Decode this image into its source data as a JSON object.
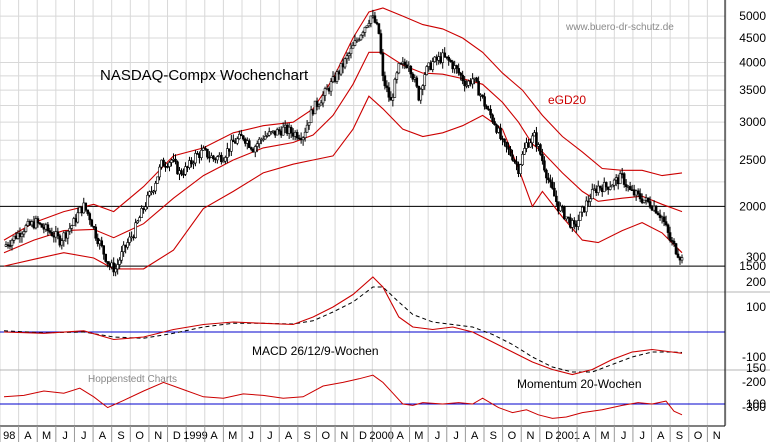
{
  "chart_data": [
    {
      "type": "candlestick",
      "title": "NASDAQ-Compx Wochenchart",
      "watermark": "www.buero-dr-schutz.de",
      "series_label": "eGD20",
      "y_scale": "log",
      "ylim": [
        1350,
        5300
      ],
      "y_ticks": [
        5000,
        4500,
        4000,
        3500,
        3000,
        2500,
        2000,
        1500
      ],
      "reference_lines": [
        2000,
        1500
      ],
      "close_path": [
        [
          0,
          1650
        ],
        [
          5,
          1720
        ],
        [
          10,
          1800
        ],
        [
          16,
          1850
        ],
        [
          20,
          1800
        ],
        [
          24,
          1760
        ],
        [
          28,
          1700
        ],
        [
          32,
          1780
        ],
        [
          35,
          1850
        ],
        [
          38,
          1960
        ],
        [
          40,
          2000
        ],
        [
          43,
          1900
        ],
        [
          46,
          1750
        ],
        [
          50,
          1600
        ],
        [
          53,
          1500
        ],
        [
          56,
          1480
        ],
        [
          60,
          1620
        ],
        [
          65,
          1760
        ],
        [
          70,
          1980
        ],
        [
          75,
          2200
        ],
        [
          79,
          2450
        ],
        [
          84,
          2500
        ],
        [
          88,
          2350
        ],
        [
          92,
          2400
        ],
        [
          96,
          2550
        ],
        [
          100,
          2600
        ],
        [
          105,
          2520
        ],
        [
          110,
          2550
        ],
        [
          115,
          2720
        ],
        [
          120,
          2800
        ],
        [
          125,
          2650
        ],
        [
          130,
          2800
        ],
        [
          136,
          2850
        ],
        [
          140,
          2900
        ],
        [
          145,
          2850
        ],
        [
          150,
          2820
        ],
        [
          155,
          3200
        ],
        [
          160,
          3400
        ],
        [
          165,
          3650
        ],
        [
          170,
          3950
        ],
        [
          175,
          4300
        ],
        [
          180,
          4700
        ],
        [
          184,
          5000
        ],
        [
          186,
          4850
        ],
        [
          188,
          4600
        ],
        [
          190,
          3700
        ],
        [
          192,
          3500
        ],
        [
          194,
          3300
        ],
        [
          198,
          3900
        ],
        [
          203,
          4000
        ],
        [
          208,
          3400
        ],
        [
          211,
          3800
        ],
        [
          215,
          4000
        ],
        [
          220,
          4100
        ],
        [
          224,
          4000
        ],
        [
          228,
          3800
        ],
        [
          232,
          3600
        ],
        [
          235,
          3700
        ],
        [
          238,
          3500
        ],
        [
          242,
          3200
        ],
        [
          246,
          3000
        ],
        [
          250,
          2700
        ],
        [
          255,
          2550
        ],
        [
          258,
          2400
        ],
        [
          262,
          2700
        ],
        [
          266,
          2800
        ],
        [
          270,
          2500
        ],
        [
          274,
          2200
        ],
        [
          278,
          2000
        ],
        [
          282,
          1900
        ],
        [
          286,
          1800
        ],
        [
          290,
          1950
        ],
        [
          294,
          2100
        ],
        [
          298,
          2200
        ],
        [
          302,
          2200
        ],
        [
          306,
          2250
        ],
        [
          310,
          2300
        ],
        [
          314,
          2150
        ],
        [
          318,
          2100
        ],
        [
          322,
          2050
        ],
        [
          326,
          2000
        ],
        [
          330,
          1900
        ],
        [
          334,
          1700
        ],
        [
          338,
          1600
        ],
        [
          340,
          1550
        ]
      ],
      "band_upper": [
        [
          0,
          1700
        ],
        [
          15,
          1850
        ],
        [
          30,
          1950
        ],
        [
          45,
          2020
        ],
        [
          55,
          1950
        ],
        [
          70,
          2200
        ],
        [
          85,
          2550
        ],
        [
          100,
          2650
        ],
        [
          115,
          2850
        ],
        [
          130,
          2950
        ],
        [
          145,
          3000
        ],
        [
          155,
          3200
        ],
        [
          165,
          3700
        ],
        [
          175,
          4500
        ],
        [
          183,
          5100
        ],
        [
          190,
          5200
        ],
        [
          200,
          5000
        ],
        [
          210,
          4800
        ],
        [
          220,
          4700
        ],
        [
          230,
          4500
        ],
        [
          240,
          4200
        ],
        [
          250,
          3800
        ],
        [
          260,
          3500
        ],
        [
          270,
          3100
        ],
        [
          280,
          2800
        ],
        [
          290,
          2600
        ],
        [
          300,
          2400
        ],
        [
          310,
          2380
        ],
        [
          320,
          2380
        ],
        [
          330,
          2320
        ],
        [
          340,
          2350
        ]
      ],
      "band_lower": [
        [
          0,
          1500
        ],
        [
          15,
          1550
        ],
        [
          30,
          1600
        ],
        [
          45,
          1560
        ],
        [
          55,
          1480
        ],
        [
          70,
          1480
        ],
        [
          85,
          1620
        ],
        [
          100,
          1980
        ],
        [
          115,
          2150
        ],
        [
          130,
          2350
        ],
        [
          145,
          2450
        ],
        [
          155,
          2500
        ],
        [
          165,
          2550
        ],
        [
          175,
          2900
        ],
        [
          183,
          3400
        ],
        [
          190,
          3200
        ],
        [
          200,
          2900
        ],
        [
          210,
          2800
        ],
        [
          220,
          2850
        ],
        [
          230,
          2950
        ],
        [
          240,
          3100
        ],
        [
          250,
          2900
        ],
        [
          258,
          2400
        ],
        [
          265,
          2000
        ],
        [
          270,
          2150
        ],
        [
          280,
          1900
        ],
        [
          290,
          1700
        ],
        [
          298,
          1680
        ],
        [
          310,
          1780
        ],
        [
          320,
          1850
        ],
        [
          330,
          1760
        ],
        [
          340,
          1600
        ]
      ],
      "band_mid": [
        [
          0,
          1600
        ],
        [
          15,
          1700
        ],
        [
          30,
          1780
        ],
        [
          45,
          1790
        ],
        [
          55,
          1720
        ],
        [
          70,
          1840
        ],
        [
          85,
          2080
        ],
        [
          100,
          2320
        ],
        [
          115,
          2500
        ],
        [
          130,
          2650
        ],
        [
          145,
          2720
        ],
        [
          155,
          2820
        ],
        [
          165,
          3100
        ],
        [
          175,
          3600
        ],
        [
          183,
          4200
        ],
        [
          190,
          4200
        ],
        [
          200,
          3950
        ],
        [
          210,
          3800
        ],
        [
          220,
          3780
        ],
        [
          230,
          3700
        ],
        [
          240,
          3600
        ],
        [
          250,
          3300
        ],
        [
          258,
          3000
        ],
        [
          265,
          2700
        ],
        [
          270,
          2600
        ],
        [
          280,
          2350
        ],
        [
          290,
          2150
        ],
        [
          298,
          2050
        ],
        [
          310,
          2080
        ],
        [
          320,
          2100
        ],
        [
          330,
          2020
        ],
        [
          340,
          1950
        ]
      ]
    },
    {
      "type": "line",
      "label": "MACD 26/12/9-Wochen",
      "y_ticks": [
        300,
        200,
        100,
        -100,
        -200,
        -300
      ],
      "zero_line": 0,
      "macd": [
        [
          0,
          0
        ],
        [
          20,
          -5
        ],
        [
          40,
          5
        ],
        [
          55,
          -30
        ],
        [
          70,
          -20
        ],
        [
          85,
          10
        ],
        [
          100,
          30
        ],
        [
          115,
          40
        ],
        [
          130,
          35
        ],
        [
          145,
          30
        ],
        [
          155,
          60
        ],
        [
          165,
          100
        ],
        [
          175,
          150
        ],
        [
          185,
          220
        ],
        [
          190,
          180
        ],
        [
          198,
          60
        ],
        [
          205,
          20
        ],
        [
          215,
          10
        ],
        [
          225,
          20
        ],
        [
          235,
          0
        ],
        [
          245,
          -40
        ],
        [
          255,
          -80
        ],
        [
          265,
          -120
        ],
        [
          275,
          -150
        ],
        [
          285,
          -170
        ],
        [
          295,
          -150
        ],
        [
          305,
          -110
        ],
        [
          315,
          -80
        ],
        [
          325,
          -70
        ],
        [
          335,
          -80
        ],
        [
          340,
          -85
        ]
      ],
      "signal": [
        [
          0,
          5
        ],
        [
          20,
          -3
        ],
        [
          40,
          0
        ],
        [
          55,
          -20
        ],
        [
          70,
          -25
        ],
        [
          85,
          -5
        ],
        [
          100,
          20
        ],
        [
          115,
          35
        ],
        [
          130,
          35
        ],
        [
          145,
          32
        ],
        [
          155,
          45
        ],
        [
          165,
          80
        ],
        [
          175,
          120
        ],
        [
          185,
          180
        ],
        [
          190,
          180
        ],
        [
          198,
          120
        ],
        [
          205,
          70
        ],
        [
          215,
          40
        ],
        [
          225,
          30
        ],
        [
          235,
          20
        ],
        [
          245,
          -10
        ],
        [
          255,
          -50
        ],
        [
          265,
          -100
        ],
        [
          275,
          -140
        ],
        [
          285,
          -160
        ],
        [
          295,
          -160
        ],
        [
          305,
          -130
        ],
        [
          315,
          -100
        ],
        [
          325,
          -80
        ],
        [
          335,
          -80
        ],
        [
          340,
          -82
        ]
      ]
    },
    {
      "type": "line",
      "label": "Momentum 20-Wochen",
      "source_note": "Hoppenstedt Charts",
      "y_ticks": [
        150,
        100
      ],
      "ref_line": 100,
      "values": [
        [
          0,
          110
        ],
        [
          10,
          112
        ],
        [
          20,
          118
        ],
        [
          30,
          115
        ],
        [
          38,
          122
        ],
        [
          45,
          110
        ],
        [
          52,
          95
        ],
        [
          60,
          105
        ],
        [
          70,
          118
        ],
        [
          80,
          130
        ],
        [
          90,
          120
        ],
        [
          100,
          110
        ],
        [
          110,
          108
        ],
        [
          120,
          114
        ],
        [
          130,
          112
        ],
        [
          140,
          108
        ],
        [
          150,
          110
        ],
        [
          160,
          125
        ],
        [
          170,
          130
        ],
        [
          178,
          135
        ],
        [
          185,
          140
        ],
        [
          190,
          130
        ],
        [
          195,
          115
        ],
        [
          200,
          100
        ],
        [
          205,
          98
        ],
        [
          210,
          102
        ],
        [
          220,
          100
        ],
        [
          228,
          102
        ],
        [
          235,
          100
        ],
        [
          240,
          108
        ],
        [
          248,
          95
        ],
        [
          255,
          88
        ],
        [
          262,
          92
        ],
        [
          268,
          85
        ],
        [
          275,
          80
        ],
        [
          282,
          82
        ],
        [
          290,
          88
        ],
        [
          300,
          92
        ],
        [
          310,
          98
        ],
        [
          318,
          102
        ],
        [
          325,
          100
        ],
        [
          332,
          104
        ],
        [
          336,
          90
        ],
        [
          340,
          85
        ]
      ]
    }
  ],
  "x_axis": {
    "labels": [
      "98",
      "A",
      "M",
      "J",
      "J",
      "A",
      "S",
      "O",
      "N",
      "D",
      "1999",
      "A",
      "M",
      "J",
      "J",
      "A",
      "S",
      "O",
      "N",
      "D",
      "2000",
      "A",
      "M",
      "J",
      "J",
      "A",
      "S",
      "O",
      "N",
      "D",
      "2001",
      "A",
      "M",
      "J",
      "J",
      "A",
      "S",
      "O",
      "N"
    ]
  },
  "colors": {
    "band": "#cc0000",
    "candle": "#000000",
    "guide": "#0000cc",
    "grid": "#d8d8d8",
    "watermark": "#8a8a8a"
  }
}
